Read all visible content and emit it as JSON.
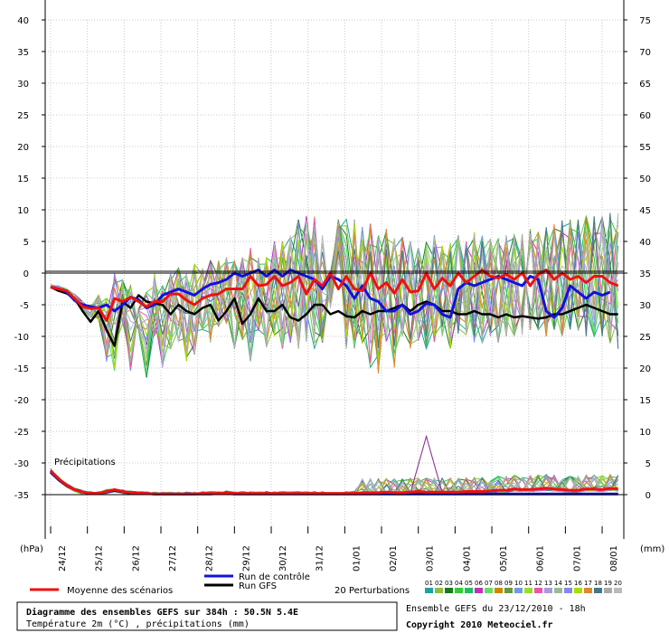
{
  "chart_data": {
    "type": "line",
    "title": "Diagramme des ensembles GEFS sur 384h : 50.5N 5.4E",
    "subtitle": "Température 2m (°C) , précipitations (mm)",
    "left_unit": "(hPa)",
    "right_unit": "(mm)",
    "precip_label": "Précipitations",
    "ensemble_info": "Ensemble GEFS du 23/12/2010 - 18h",
    "copyright": "Copyright 2010 Meteociel.fr",
    "grid": true,
    "x_ticks": [
      "24/12",
      "25/12",
      "26/12",
      "27/12",
      "28/12",
      "29/12",
      "30/12",
      "31/12",
      "01/01",
      "02/01",
      "03/01",
      "04/01",
      "05/01",
      "06/01",
      "07/01",
      "08/01"
    ],
    "y_left_ticks": [
      40,
      35,
      30,
      25,
      20,
      15,
      10,
      5,
      0,
      -5,
      -10,
      -15,
      -20,
      -25,
      -30,
      -35
    ],
    "y_right_ticks": [
      75,
      70,
      65,
      60,
      55,
      50,
      45,
      40,
      35,
      30,
      25,
      20,
      15,
      10,
      5,
      0
    ],
    "ylim_temp": [
      -35,
      40
    ],
    "legend": {
      "mean": "Moyenne des scénarios",
      "control": "Run de contrôle",
      "gfs": "Run GFS",
      "perturbations": "20 Perturbations",
      "perturbation_ids": [
        "01",
        "02",
        "03",
        "04",
        "05",
        "06",
        "07",
        "08",
        "09",
        "10",
        "11",
        "12",
        "13",
        "14",
        "15",
        "16",
        "17",
        "18",
        "19",
        "20"
      ]
    },
    "colors": {
      "mean": "#ee1111",
      "control": "#1111dd",
      "gfs": "#000000",
      "perturbations": [
        "#20a0a0",
        "#8fbc3f",
        "#1a7a1a",
        "#33cc33",
        "#22bb66",
        "#bb33bb",
        "#66dd66",
        "#cc8800",
        "#669944",
        "#7799dd",
        "#99dd33",
        "#ee55aa",
        "#aa99dd",
        "#99bb99",
        "#8888ee",
        "#aadd00",
        "#dd8833",
        "#447788",
        "#aaaaaa",
        "#bbbbbb"
      ]
    },
    "series": [
      {
        "name": "Moyenne des scénarios",
        "kind": "temperature",
        "values": [
          -2.2,
          -2.5,
          -2.8,
          -4,
          -5.3,
          -5.6,
          -5.5,
          -7.5,
          -4,
          -4.5,
          -3.8,
          -4.5,
          -5.3,
          -4.5,
          -4.5,
          -3.3,
          -3.3,
          -4.3,
          -5,
          -4,
          -3.5,
          -3.3,
          -2.5,
          -2.5,
          -2.5,
          -0.5,
          -2,
          -1.8,
          -0.5,
          -2,
          -1.5,
          -0.5,
          -3.3,
          -1,
          -2,
          0,
          -2.5,
          -0.5,
          -2.5,
          -2.8,
          0,
          -2.5,
          -1.5,
          -3.2,
          -1,
          -3,
          -2.8,
          0,
          -2.5,
          -0.8,
          -2,
          0,
          -1.5,
          -0.5,
          0.5,
          -0.5,
          -0.8,
          -0.2,
          -1,
          0,
          -2,
          -0.2,
          0.5,
          -1,
          0,
          -1,
          -0.5,
          -1.5,
          -0.5,
          -0.5,
          -1.5,
          -2
        ]
      },
      {
        "name": "Run GFS",
        "kind": "temperature",
        "values": [
          -2.2,
          -2.8,
          -3.2,
          -4,
          -6,
          -7.7,
          -6,
          -9,
          -11.5,
          -4.5,
          -5.5,
          -3.5,
          -4.5,
          -4.8,
          -5,
          -6.5,
          -5,
          -6,
          -6.5,
          -5.5,
          -5,
          -7.5,
          -6,
          -4,
          -8,
          -6.5,
          -4,
          -6,
          -6,
          -5,
          -7,
          -7.5,
          -6.5,
          -5,
          -5,
          -6.5,
          -6,
          -6.8,
          -7,
          -6,
          -6.5,
          -6,
          -6,
          -5.5,
          -5,
          -6,
          -5,
          -4.5,
          -5,
          -6,
          -6,
          -6.5,
          -6.5,
          -6,
          -6.5,
          -6.5,
          -7,
          -6.5,
          -7,
          -6.8,
          -7,
          -7.2,
          -7,
          -6.5,
          -6.5,
          -6,
          -5.5,
          -5,
          -5.5,
          -6,
          -6.5,
          -6.5
        ]
      },
      {
        "name": "Run de contrôle",
        "kind": "temperature",
        "values": [
          -2.2,
          -2.5,
          -3,
          -4.3,
          -5,
          -5.3,
          -5.5,
          -5,
          -6,
          -5,
          -3.8,
          -4.2,
          -5.5,
          -5,
          -3.5,
          -3,
          -2.5,
          -3,
          -3.5,
          -2.5,
          -1.8,
          -1.5,
          -1,
          0,
          -0.5,
          0,
          0.5,
          -0.5,
          0.5,
          -0.5,
          0.5,
          0,
          -0.5,
          -1,
          -2.5,
          -0.5,
          -1,
          -2,
          -4,
          -2,
          -4,
          -4.5,
          -6,
          -6,
          -5,
          -6.5,
          -6,
          -4.8,
          -5,
          -6.5,
          -7,
          -2.5,
          -1.5,
          -2,
          -1.5,
          -1,
          -0.5,
          -1,
          -1.5,
          -2,
          -0.5,
          -1,
          -6,
          -7,
          -5.5,
          -2,
          -3,
          -4,
          -3,
          -3.5,
          -3,
          null
        ]
      },
      {
        "name": "Moyenne des scénarios (précipitations)",
        "kind": "precipitation",
        "values": [
          3.8,
          2.5,
          1.5,
          0.8,
          0.4,
          0.2,
          0.2,
          0.5,
          0.8,
          0.5,
          0.3,
          0.2,
          0.2,
          0.1,
          0.1,
          0.1,
          0.1,
          0.1,
          0.1,
          0.2,
          0.2,
          0.2,
          0.3,
          0.2,
          0.2,
          0.2,
          0.2,
          0.2,
          0.2,
          0.2,
          0.2,
          0.2,
          0.2,
          0.2,
          0.2,
          0.2,
          0.2,
          0.2,
          0.2,
          0.3,
          0.3,
          0.3,
          0.4,
          0.3,
          0.3,
          0.4,
          0.5,
          0.4,
          0.4,
          0.4,
          0.4,
          0.4,
          0.5,
          0.5,
          0.5,
          0.6,
          0.7,
          0.7,
          0.9,
          0.8,
          0.8,
          0.9,
          1,
          0.9,
          0.8,
          0.7,
          0.7,
          0.9,
          0.9,
          0.8,
          1,
          0.9
        ]
      },
      {
        "name": "Run GFS (précipitations)",
        "kind": "precipitation",
        "values": [
          3.5,
          2.3,
          1.4,
          0.8,
          0.4,
          0.2,
          0.2,
          0.4,
          0.6,
          0.4,
          0.2,
          0.1,
          0.1,
          0.1,
          0.1,
          0.1,
          0.1,
          0.1,
          0.1,
          0.1,
          0.1,
          0.1,
          0.1,
          0.1,
          0.1,
          0.1,
          0.1,
          0.1,
          0.1,
          0.1,
          0.1,
          0.1,
          0.1,
          0.1,
          0.1,
          0.1,
          0.1,
          0.1,
          0.1,
          0.1,
          0.1,
          0.1,
          0.1,
          0.1,
          0.1,
          0.1,
          0.1,
          0.1,
          0.1,
          0.1,
          0.1,
          0.1,
          0.1,
          0.1,
          0.1,
          0.1,
          0.1,
          0.1,
          0.1,
          0.1,
          0.1,
          0.1,
          0.1,
          0.1,
          0.1,
          0.1,
          0.1,
          0.1,
          0.1,
          0.1,
          0.1,
          0.1
        ]
      },
      {
        "name": "Run de contrôle (précipitations)",
        "kind": "precipitation",
        "values": [
          3.6,
          2.4,
          1.5,
          0.8,
          0.4,
          0.2,
          0.2,
          0.4,
          0.7,
          0.5,
          0.3,
          0.2,
          0.2,
          0.1,
          0.1,
          0.1,
          0.1,
          0.1,
          0.1,
          0.1,
          0.1,
          0.2,
          0.2,
          0.1,
          0.1,
          0.1,
          0.1,
          0.1,
          0.1,
          0.1,
          0.1,
          0.1,
          0.1,
          0.1,
          0.1,
          0.1,
          0.1,
          0.1,
          0.1,
          0.1,
          0.1,
          0.1,
          0.1,
          0.1,
          0.1,
          0.1,
          0.1,
          0.1,
          0.1,
          0.1,
          0.1,
          0.1,
          0.1,
          0.1,
          0.1,
          0.1,
          0.1,
          0.1,
          0.1,
          0.1,
          0.1,
          0.1,
          0.1,
          0.1,
          0.1,
          0.1,
          0.1,
          0.1,
          0.1,
          0.1,
          0.1,
          0.1
        ]
      }
    ],
    "perturbation_envelope": {
      "upper": [
        -1.8,
        -2,
        -2.5,
        -3,
        -4.5,
        -5,
        -3.5,
        -4,
        0,
        -1,
        -2,
        -3.5,
        -3,
        0,
        -2,
        0,
        1,
        0,
        1.5,
        1.5,
        2,
        2,
        2.5,
        2,
        2.5,
        4,
        2.5,
        3,
        5,
        5,
        6,
        8.5,
        9,
        9,
        9,
        8.5,
        8.5,
        9,
        8.5,
        7.5,
        8,
        6,
        7,
        5.5,
        6,
        5,
        4,
        5,
        6,
        4.5,
        5,
        6,
        5,
        6.5,
        6,
        5.5,
        6,
        6,
        6,
        6.5,
        7,
        6.5,
        7.5,
        8,
        8.5,
        8.5,
        8.5,
        9,
        9,
        9,
        9.5,
        9.5
      ],
      "lower": [
        -2.4,
        -2.8,
        -3.2,
        -4.5,
        -6,
        -7,
        -7.5,
        -14,
        -15.5,
        -8,
        -15.5,
        -11,
        -16.5,
        -10,
        -15,
        -12,
        -11,
        -14,
        -13,
        -9,
        -11,
        -8.5,
        -8,
        -12,
        -10.5,
        -14,
        -9,
        -12,
        -10,
        -12,
        -11,
        -12,
        -11,
        -12,
        -11,
        -10,
        -11,
        -12,
        -12,
        -11,
        -15,
        -16,
        -11,
        -15,
        -10,
        -13,
        -11,
        -12,
        -11,
        -10,
        -12,
        -11,
        -10,
        -11,
        -11,
        -10,
        -11,
        -10,
        -10,
        -10,
        -9,
        -9,
        -10,
        -9,
        -10,
        -9,
        -9,
        -10,
        -10,
        -10,
        -11,
        -12
      ]
    },
    "precip_peak": {
      "label": "03/01",
      "value": 9.2
    }
  }
}
